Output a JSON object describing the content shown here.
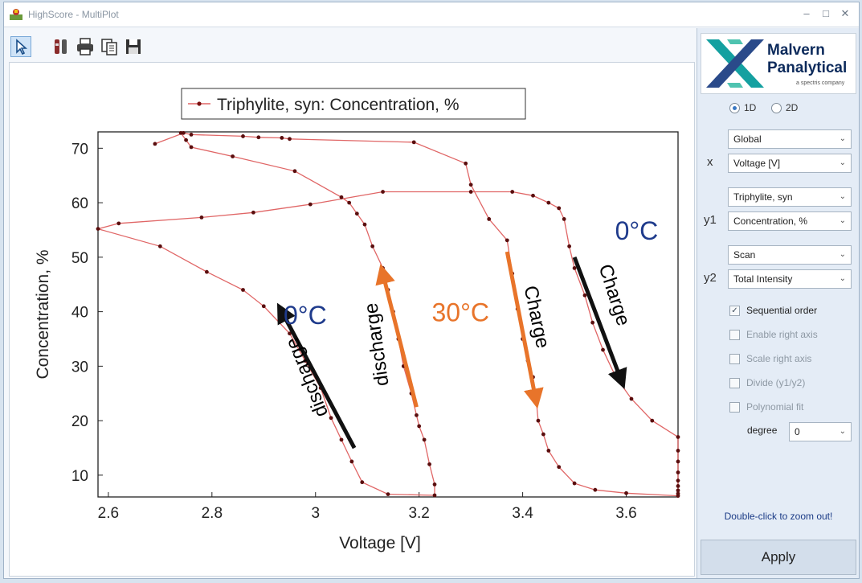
{
  "window": {
    "title": "HighScore - MultiPlot",
    "minimize": "–",
    "maximize": "□",
    "close": "✕"
  },
  "toolbar": {
    "icons": [
      "pointer-icon",
      "tools-icon",
      "print-icon",
      "copy-icon",
      "save-icon"
    ]
  },
  "chart_data": {
    "type": "scatter",
    "xlabel": "Voltage [V]",
    "ylabel": "Concentration, %",
    "xlim": [
      2.58,
      3.7
    ],
    "ylim": [
      6,
      73
    ],
    "x_ticks": [
      2.6,
      2.8,
      3,
      3.2,
      3.4,
      3.6
    ],
    "x_tick_labels": [
      "2.6",
      "2.8",
      "3",
      "3.2",
      "3.4",
      "3.6"
    ],
    "y_ticks": [
      10,
      20,
      30,
      40,
      50,
      60,
      70
    ],
    "y_tick_labels": [
      "10",
      "20",
      "30",
      "40",
      "50",
      "60",
      "70"
    ],
    "legend": {
      "label": "Triphylite, syn: Concentration, %",
      "placement": "top-left"
    },
    "grid": false,
    "series_color": "#e06666",
    "series": [
      {
        "name": "Triphylite, syn: Concentration, %",
        "points": [
          [
            2.69,
            70.8
          ],
          [
            2.745,
            72.8
          ],
          [
            2.76,
            72.5
          ],
          [
            2.86,
            72.2
          ],
          [
            2.89,
            72.0
          ],
          [
            2.935,
            71.9
          ],
          [
            2.95,
            71.7
          ],
          [
            3.19,
            71.1
          ],
          [
            3.29,
            67.2
          ],
          [
            3.3,
            63.3
          ],
          [
            3.335,
            57.0
          ],
          [
            3.37,
            53.1
          ],
          [
            3.38,
            47.0
          ],
          [
            3.39,
            40.5
          ],
          [
            3.4,
            35.0
          ],
          [
            3.41,
            31.0
          ],
          [
            3.42,
            28.0
          ],
          [
            3.425,
            25.0
          ],
          [
            3.43,
            20.0
          ],
          [
            3.44,
            17.5
          ],
          [
            3.45,
            14.5
          ],
          [
            3.47,
            11.5
          ],
          [
            3.5,
            8.5
          ],
          [
            3.54,
            7.3
          ],
          [
            3.6,
            6.7
          ],
          [
            3.7,
            6.2
          ],
          [
            3.7,
            6.6
          ],
          [
            3.7,
            7.2
          ],
          [
            3.7,
            8.0
          ],
          [
            3.7,
            9.0
          ],
          [
            3.7,
            10.5
          ],
          [
            3.7,
            12.5
          ],
          [
            3.7,
            14.5
          ],
          [
            3.7,
            17.0
          ],
          [
            3.65,
            20.0
          ],
          [
            3.61,
            24.0
          ],
          [
            3.58,
            28.0
          ],
          [
            3.555,
            33.0
          ],
          [
            3.535,
            38.0
          ],
          [
            3.52,
            43.0
          ],
          [
            3.5,
            48.0
          ],
          [
            3.49,
            52.0
          ],
          [
            3.48,
            57.0
          ],
          [
            3.47,
            59.0
          ],
          [
            3.45,
            60.0
          ],
          [
            3.42,
            61.3
          ],
          [
            3.38,
            62.0
          ],
          [
            3.3,
            62.0
          ],
          [
            3.13,
            62.0
          ],
          [
            2.99,
            59.7
          ],
          [
            2.88,
            58.2
          ],
          [
            2.78,
            57.3
          ],
          [
            2.62,
            56.2
          ],
          [
            2.58,
            55.2
          ],
          [
            2.7,
            52.0
          ],
          [
            2.79,
            47.3
          ],
          [
            2.86,
            44.0
          ],
          [
            2.9,
            41.0
          ],
          [
            2.95,
            36.0
          ],
          [
            2.98,
            31.0
          ],
          [
            3.01,
            26.0
          ],
          [
            3.03,
            20.5
          ],
          [
            3.05,
            16.5
          ],
          [
            3.07,
            12.5
          ],
          [
            3.09,
            8.7
          ],
          [
            3.14,
            6.5
          ],
          [
            3.23,
            6.3
          ],
          [
            3.23,
            8.3
          ],
          [
            3.22,
            12.0
          ],
          [
            3.21,
            16.5
          ],
          [
            3.2,
            19.0
          ],
          [
            3.195,
            21.0
          ],
          [
            3.185,
            25.0
          ],
          [
            3.17,
            30.0
          ],
          [
            3.16,
            35.0
          ],
          [
            3.15,
            40.0
          ],
          [
            3.14,
            44.0
          ],
          [
            3.13,
            48.0
          ],
          [
            3.11,
            52.0
          ],
          [
            3.095,
            56.0
          ],
          [
            3.08,
            58.0
          ],
          [
            3.065,
            60.0
          ],
          [
            3.05,
            61.0
          ],
          [
            2.96,
            65.8
          ],
          [
            2.84,
            68.5
          ],
          [
            2.76,
            70.2
          ],
          [
            2.75,
            71.5
          ],
          [
            2.74,
            72.8
          ]
        ]
      }
    ],
    "annotations": [
      {
        "text": "0°C",
        "color": "#1f3b8c"
      },
      {
        "text": "0°C",
        "color": "#1f3b8c"
      },
      {
        "text": "30°C",
        "color": "#e8742a"
      },
      {
        "text": "discharge",
        "color": "#000000"
      },
      {
        "text": "discharge",
        "color": "#000000"
      },
      {
        "text": "Charge",
        "color": "#000000"
      },
      {
        "text": "Charge",
        "color": "#000000"
      }
    ],
    "arrows": [
      {
        "color": "#111111",
        "from": [
          3.075,
          15.0
        ],
        "to": [
          2.935,
          40.0
        ]
      },
      {
        "color": "#e8742a",
        "from": [
          3.195,
          22.5
        ],
        "to": [
          3.13,
          47.0
        ]
      },
      {
        "color": "#e8742a",
        "from": [
          3.37,
          51.0
        ],
        "to": [
          3.425,
          24.0
        ]
      },
      {
        "color": "#111111",
        "from": [
          3.5,
          50.0
        ],
        "to": [
          3.59,
          27.5
        ]
      }
    ]
  },
  "sidebar": {
    "logo": {
      "line1": "Malvern",
      "line2": "Panalytical",
      "tagline": "a spectris company"
    },
    "mode": {
      "option_1d": "1D",
      "option_2d": "2D",
      "selected": "1D"
    },
    "x_group": "Global",
    "x_label": "x",
    "x_value": "Voltage [V]",
    "y1_group": "Triphylite, syn",
    "y1_label": "y1",
    "y1_value": "Concentration, %",
    "y2_group": "Scan",
    "y2_label": "y2",
    "y2_value": "Total Intensity",
    "options": {
      "sequential_order": "Sequential order",
      "enable_right_axis": "Enable right axis",
      "scale_right_axis": "Scale right axis",
      "divide": "Divide (y1/y2)",
      "polynomial_fit": "Polynomial fit"
    },
    "degree_label": "degree",
    "degree_value": "0",
    "zoom_hint": "Double-click to zoom out!",
    "apply_label": "Apply"
  }
}
